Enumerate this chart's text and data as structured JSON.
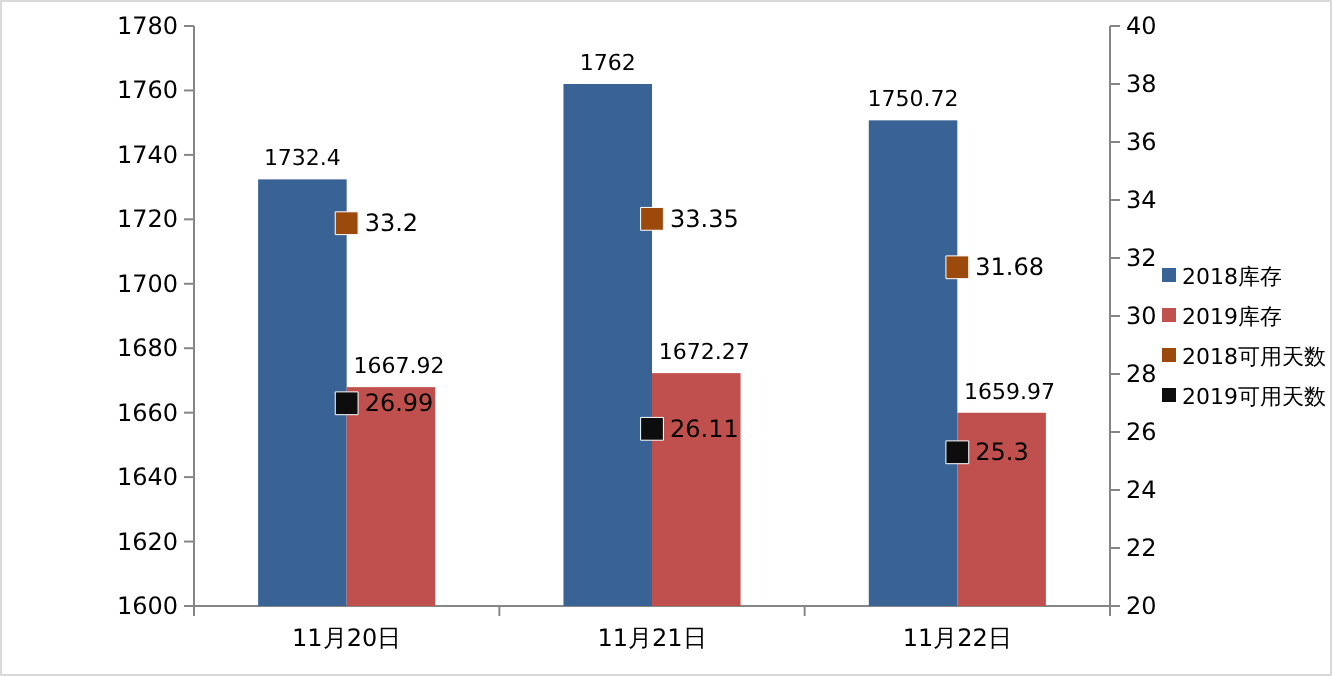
{
  "chart_data": {
    "type": "bar",
    "categories": [
      "11月20日",
      "11月21日",
      "11月22日"
    ],
    "series": [
      {
        "name": "2018库存",
        "color": "#3a6395",
        "values": [
          1732.4,
          1762,
          1750.72
        ]
      },
      {
        "name": "2019库存",
        "color": "#c0504d",
        "values": [
          1667.92,
          1672.27,
          1659.97
        ]
      },
      {
        "name": "2018可用天数",
        "type": "scatter",
        "axis": "y2",
        "color": "#9c4a0c",
        "values": [
          33.2,
          33.35,
          31.68
        ]
      },
      {
        "name": "2019可用天数",
        "type": "scatter",
        "axis": "y2",
        "color": "#0d0d0d",
        "values": [
          26.99,
          26.11,
          25.3
        ]
      }
    ],
    "ylim": [
      1600,
      1780
    ],
    "yticks": [
      1600,
      1620,
      1640,
      1660,
      1680,
      1700,
      1720,
      1740,
      1760,
      1780
    ],
    "y2lim": [
      20,
      40
    ],
    "y2ticks": [
      20,
      22,
      24,
      26,
      28,
      30,
      32,
      34,
      36,
      38,
      40
    ],
    "data_labels": true,
    "legend": "right",
    "marker": "square",
    "grid": false
  }
}
